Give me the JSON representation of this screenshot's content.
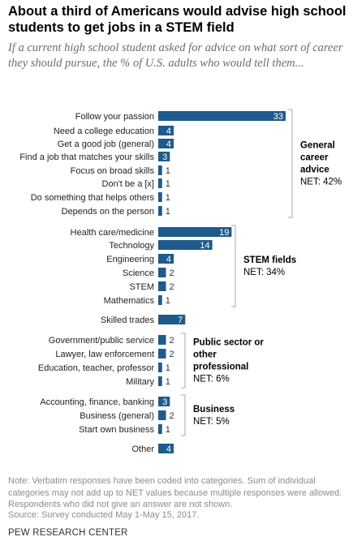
{
  "header": {
    "title": "About a third of Americans would advise high school students to get jobs in a STEM field",
    "subtitle": "If a current high school student asked for advice on what sort of career they should pursue, the % of U.S. adults who would tell them..."
  },
  "footer": {
    "note": "Note: Verbatim responses have been coded into categories. Sum of individual categories may not add up to NET values because multiple responses were allowed. Respondents who did not give an answer are not shown.",
    "source": "Source: Survey conducted May 1-May 15, 2017.",
    "org": "PEW RESEARCH CENTER"
  },
  "colors": {
    "bar": "#1f5a8c",
    "label_inside": "#ffffff",
    "label_outside": "#333333",
    "bracket": "#aaaaaa"
  },
  "chart_data": {
    "type": "bar",
    "orientation": "horizontal",
    "unit": "%",
    "xlim": [
      0,
      33
    ],
    "categories": [
      "Follow your passion",
      "Need a college education",
      "Get a good job (general)",
      "Find a job that matches your skills",
      "Focus on broad skills",
      "Don't be a [x]",
      "Do something that helps others",
      "Depends on the person",
      "Health care/medicine",
      "Technology",
      "Engineering",
      "Science",
      "STEM",
      "Mathematics",
      "Skilled trades",
      "Government/public service",
      "Lawyer, law enforcement",
      "Education, teacher, professor",
      "Military",
      "Accounting, finance, banking",
      "Business (general)",
      "Start own business",
      "Other"
    ],
    "values": [
      33,
      4,
      4,
      3,
      1,
      1,
      1,
      1,
      19,
      14,
      4,
      2,
      2,
      1,
      7,
      2,
      2,
      1,
      1,
      3,
      2,
      1,
      4
    ],
    "groups": [
      {
        "label": "General career advice",
        "net": "NET: 42%",
        "start": 0,
        "end": 7
      },
      {
        "label": "STEM fields",
        "net": "NET: 34%",
        "start": 8,
        "end": 13
      },
      {
        "label": "Public sector or other professional",
        "net": "NET: 6%",
        "start": 15,
        "end": 18
      },
      {
        "label": "Business",
        "net": "NET: 5%",
        "start": 19,
        "end": 21
      }
    ]
  }
}
